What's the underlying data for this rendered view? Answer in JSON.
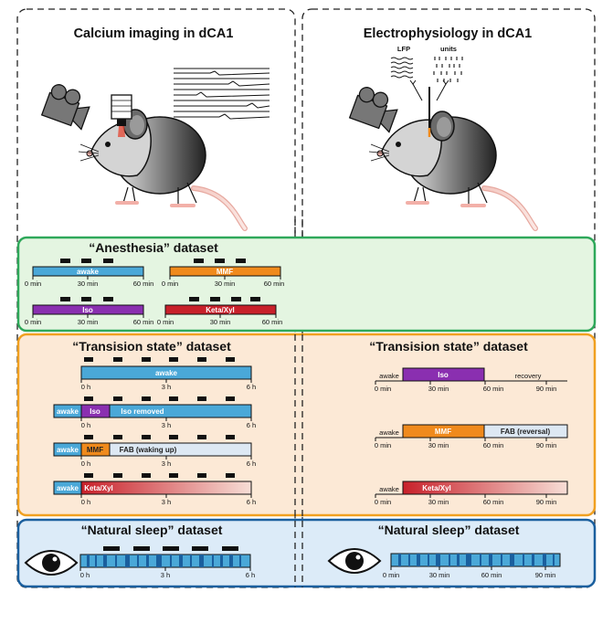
{
  "top_left_title": "Calcium imaging in dCA1",
  "top_right_title": "Electrophysiology in dCA1",
  "ephys_labels": {
    "lfp": "LFP",
    "units": "units"
  },
  "anesthesia": {
    "title": "“Anesthesia” dataset",
    "awake": {
      "label": "awake",
      "ticks": [
        "0 min",
        "30 min",
        "60 min"
      ]
    },
    "mmf": {
      "label": "MMF",
      "ticks": [
        "0 min",
        "30 min",
        "60 min"
      ]
    },
    "iso": {
      "label": "Iso",
      "ticks": [
        "0 min",
        "30 min",
        "60 min"
      ]
    },
    "keta": {
      "label": "Keta/Xyl",
      "ticks": [
        "0 min",
        "30 min",
        "60 min"
      ]
    }
  },
  "transition_left": {
    "title": "“Transision state” dataset",
    "row1": {
      "label": "awake",
      "ticks": [
        "0 h",
        "3 h",
        "6 h"
      ]
    },
    "row2": {
      "awake": "awake",
      "drug": "Iso",
      "after": "Iso removed",
      "ticks": [
        "0 h",
        "3 h",
        "6 h"
      ]
    },
    "row3": {
      "awake": "awake",
      "drug": "MMF",
      "after": "FAB (waking up)",
      "ticks": [
        "0 h",
        "3 h",
        "6 h"
      ]
    },
    "row4": {
      "awake": "awake",
      "drug": "Keta/Xyl",
      "ticks": [
        "0 h",
        "3 h",
        "6 h"
      ]
    }
  },
  "transition_right": {
    "title": "“Transision state” dataset",
    "row1": {
      "awake": "awake",
      "drug": "Iso",
      "after": "recovery",
      "ticks": [
        "0 min",
        "30 min",
        "60 min",
        "90 min"
      ]
    },
    "row2": {
      "awake": "awake",
      "drug": "MMF",
      "after": "FAB (reversal)",
      "ticks": [
        "0 min",
        "30 min",
        "60 min",
        "90 min"
      ]
    },
    "row3": {
      "awake": "awake",
      "drug": "Keta/Xyl",
      "ticks": [
        "0 min",
        "30 min",
        "60 min",
        "90 min"
      ]
    }
  },
  "sleep_left": {
    "title": "“Natural sleep” dataset",
    "ticks": [
      "0 h",
      "3 h",
      "6 h"
    ]
  },
  "sleep_right": {
    "title": "“Natural sleep” dataset",
    "ticks": [
      "0 min",
      "30 min",
      "60 min",
      "90 min"
    ]
  },
  "colors": {
    "awake": "#4aa8d8",
    "mmf": "#f08a1c",
    "iso": "#8a2fb0",
    "keta": "#c8202a",
    "green_bg": "#e4f5e1",
    "green_border": "#2ea85a",
    "orange_bg": "#fce9d6",
    "orange_border": "#f0a020",
    "blue_bg": "#dcebf8",
    "blue_border": "#1a5f9e",
    "fab": "#dde8f3"
  }
}
